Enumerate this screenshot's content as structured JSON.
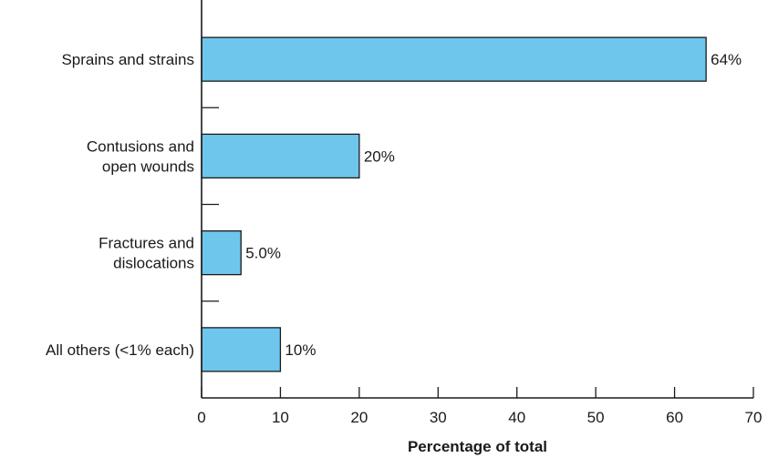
{
  "chart_data": {
    "type": "bar",
    "orientation": "horizontal",
    "categories": [
      [
        "Sprains and strains"
      ],
      [
        "Contusions and",
        "open wounds"
      ],
      [
        "Fractures and",
        "dislocations"
      ],
      [
        "All others (<1% each)"
      ]
    ],
    "values": [
      64,
      20,
      5.0,
      10
    ],
    "value_labels": [
      "64%",
      "20%",
      "5.0%",
      "10%"
    ],
    "xlabel": "Percentage of total",
    "ylabel": "",
    "title": "",
    "xlim": [
      0,
      70
    ],
    "xticks": [
      0,
      10,
      20,
      30,
      40,
      50,
      60,
      70
    ],
    "grid": false,
    "bar_color": "#6ec6ec",
    "bar_edge_color": "#1a1a1a",
    "axis_color": "#1a1a1a"
  }
}
